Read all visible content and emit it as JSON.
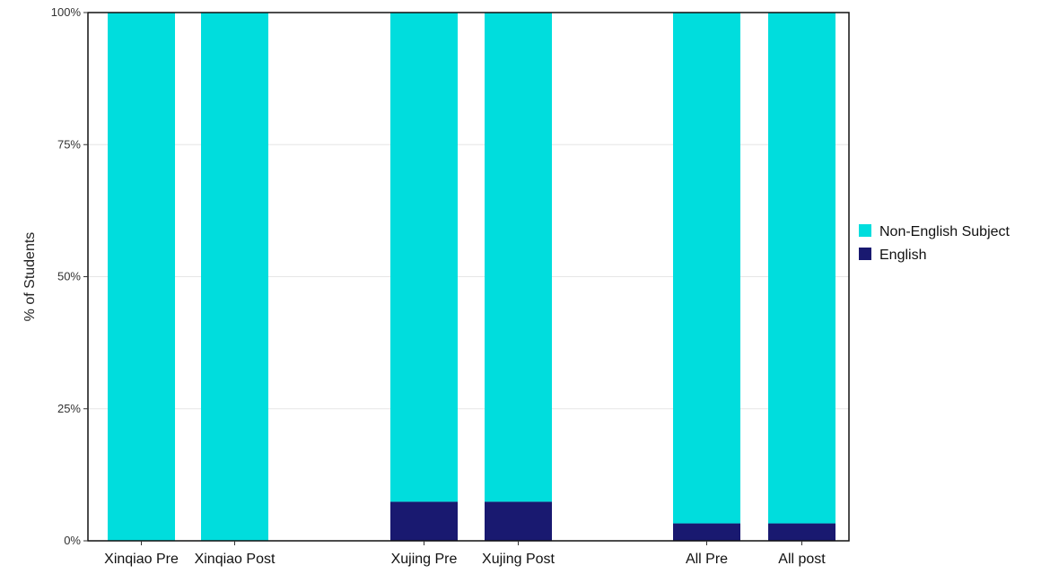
{
  "chart_data": {
    "type": "bar",
    "stacked": true,
    "title": "",
    "xlabel": "",
    "ylabel": "% of Students",
    "ylim": [
      0,
      100
    ],
    "yticks": [
      "0%",
      "25%",
      "50%",
      "75%",
      "100%"
    ],
    "ytick_values": [
      0,
      25,
      50,
      75,
      100
    ],
    "grid": "horizontal",
    "legend_position": "right",
    "categories": [
      "Xinqiao Pre",
      "Xinqiao Post",
      "Xujing Pre",
      "Xujing Post",
      "All Pre",
      "All post"
    ],
    "series": [
      {
        "name": "English",
        "color": "#191970",
        "values": [
          0,
          0,
          7.4,
          7.4,
          3.3,
          3.3
        ]
      },
      {
        "name": "Non-English Subject",
        "color": "#00DDDD",
        "values": [
          100,
          100,
          92.6,
          92.6,
          96.7,
          96.7
        ]
      }
    ],
    "legend_order": [
      "Non-English Subject",
      "English"
    ]
  }
}
